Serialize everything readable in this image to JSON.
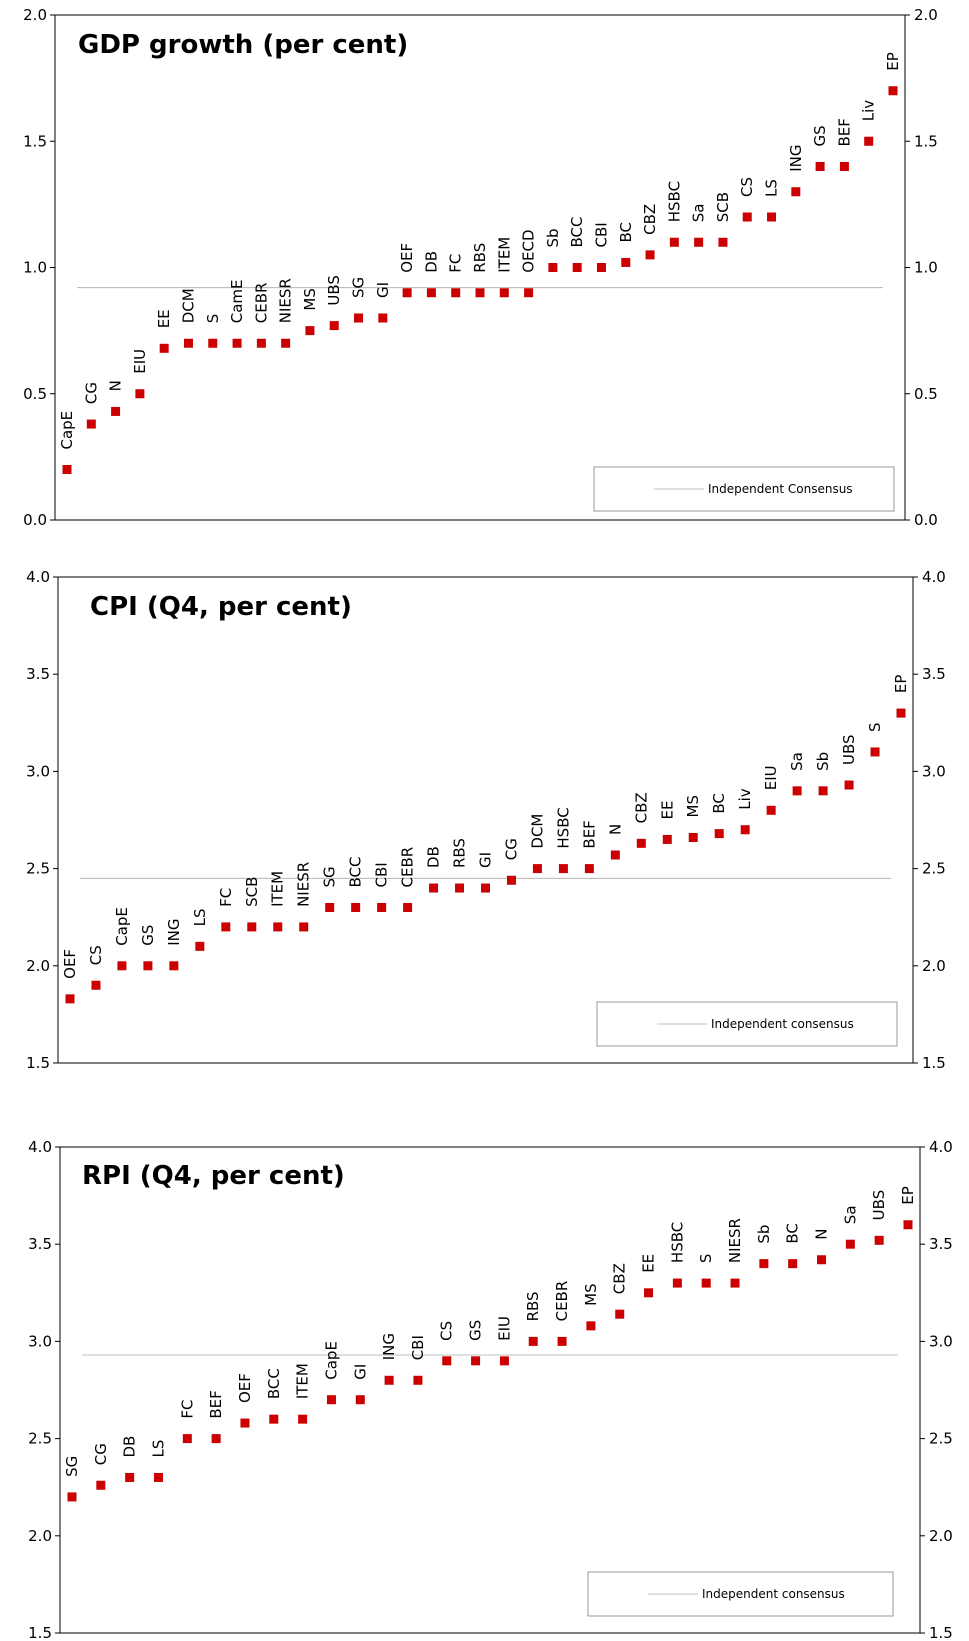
{
  "chart_data": [
    {
      "type": "scatter",
      "title": "GDP growth (per cent)",
      "ylim": [
        0.0,
        2.0
      ],
      "yticks": [
        "0.0",
        "0.5",
        "1.0",
        "1.5",
        "2.0"
      ],
      "consensus_value": 0.92,
      "legend": "Independent Consensus",
      "legend_position": "bottom-right",
      "marker_color": "#cc0000",
      "line_color": "#aaaaaa",
      "points": [
        {
          "label": "CapE",
          "value": 0.2
        },
        {
          "label": "CG",
          "value": 0.38
        },
        {
          "label": "N",
          "value": 0.43
        },
        {
          "label": "EIU",
          "value": 0.5
        },
        {
          "label": "EE",
          "value": 0.68
        },
        {
          "label": "DCM",
          "value": 0.7
        },
        {
          "label": "S",
          "value": 0.7
        },
        {
          "label": "CamE",
          "value": 0.7
        },
        {
          "label": "CEBR",
          "value": 0.7
        },
        {
          "label": "NIESR",
          "value": 0.7
        },
        {
          "label": "MS",
          "value": 0.75
        },
        {
          "label": "UBS",
          "value": 0.77
        },
        {
          "label": "SG",
          "value": 0.8
        },
        {
          "label": "GI",
          "value": 0.8
        },
        {
          "label": "OEF",
          "value": 0.9
        },
        {
          "label": "DB",
          "value": 0.9
        },
        {
          "label": "FC",
          "value": 0.9
        },
        {
          "label": "RBS",
          "value": 0.9
        },
        {
          "label": "ITEM",
          "value": 0.9
        },
        {
          "label": "OECD",
          "value": 0.9
        },
        {
          "label": "Sb",
          "value": 1.0
        },
        {
          "label": "BCC",
          "value": 1.0
        },
        {
          "label": "CBI",
          "value": 1.0
        },
        {
          "label": "BC",
          "value": 1.02
        },
        {
          "label": "CBZ",
          "value": 1.05
        },
        {
          "label": "HSBC",
          "value": 1.1
        },
        {
          "label": "Sa",
          "value": 1.1
        },
        {
          "label": "SCB",
          "value": 1.1
        },
        {
          "label": "CS",
          "value": 1.2
        },
        {
          "label": "LS",
          "value": 1.2
        },
        {
          "label": "ING",
          "value": 1.3
        },
        {
          "label": "GS",
          "value": 1.4
        },
        {
          "label": "BEF",
          "value": 1.4
        },
        {
          "label": "Liv",
          "value": 1.5
        },
        {
          "label": "EP",
          "value": 1.7
        }
      ]
    },
    {
      "type": "scatter",
      "title": "CPI (Q4, per cent)",
      "ylim": [
        1.5,
        4.0
      ],
      "yticks": [
        "1.5",
        "2.0",
        "2.5",
        "3.0",
        "3.5",
        "4.0"
      ],
      "consensus_value": 2.45,
      "legend": "Independent consensus",
      "legend_position": "bottom-right",
      "marker_color": "#cc0000",
      "line_color": "#aaaaaa",
      "points": [
        {
          "label": "OEF",
          "value": 1.83
        },
        {
          "label": "CS",
          "value": 1.9
        },
        {
          "label": "CapE",
          "value": 2.0
        },
        {
          "label": "GS",
          "value": 2.0
        },
        {
          "label": "ING",
          "value": 2.0
        },
        {
          "label": "LS",
          "value": 2.1
        },
        {
          "label": "FC",
          "value": 2.2
        },
        {
          "label": "SCB",
          "value": 2.2
        },
        {
          "label": "ITEM",
          "value": 2.2
        },
        {
          "label": "NIESR",
          "value": 2.2
        },
        {
          "label": "SG",
          "value": 2.3
        },
        {
          "label": "BCC",
          "value": 2.3
        },
        {
          "label": "CBI",
          "value": 2.3
        },
        {
          "label": "CEBR",
          "value": 2.3
        },
        {
          "label": "DB",
          "value": 2.4
        },
        {
          "label": "RBS",
          "value": 2.4
        },
        {
          "label": "GI",
          "value": 2.4
        },
        {
          "label": "CG",
          "value": 2.44
        },
        {
          "label": "DCM",
          "value": 2.5
        },
        {
          "label": "HSBC",
          "value": 2.5
        },
        {
          "label": "BEF",
          "value": 2.5
        },
        {
          "label": "N",
          "value": 2.57
        },
        {
          "label": "CBZ",
          "value": 2.63
        },
        {
          "label": "EE",
          "value": 2.65
        },
        {
          "label": "MS",
          "value": 2.66
        },
        {
          "label": "BC",
          "value": 2.68
        },
        {
          "label": "Liv",
          "value": 2.7
        },
        {
          "label": "EIU",
          "value": 2.8
        },
        {
          "label": "Sa",
          "value": 2.9
        },
        {
          "label": "Sb",
          "value": 2.9
        },
        {
          "label": "UBS",
          "value": 2.93
        },
        {
          "label": "S",
          "value": 3.1
        },
        {
          "label": "EP",
          "value": 3.3
        }
      ]
    },
    {
      "type": "scatter",
      "title": "RPI (Q4, per cent)",
      "ylim": [
        1.5,
        4.0
      ],
      "yticks": [
        "1.5",
        "2.0",
        "2.5",
        "3.0",
        "3.5",
        "4.0"
      ],
      "consensus_value": 2.93,
      "legend": "Independent consensus",
      "legend_position": "bottom-right",
      "marker_color": "#cc0000",
      "line_color": "#aaaaaa",
      "points": [
        {
          "label": "SG",
          "value": 2.2
        },
        {
          "label": "CG",
          "value": 2.26
        },
        {
          "label": "DB",
          "value": 2.3
        },
        {
          "label": "LS",
          "value": 2.3
        },
        {
          "label": "FC",
          "value": 2.5
        },
        {
          "label": "BEF",
          "value": 2.5
        },
        {
          "label": "OEF",
          "value": 2.58
        },
        {
          "label": "BCC",
          "value": 2.6
        },
        {
          "label": "ITEM",
          "value": 2.6
        },
        {
          "label": "CapE",
          "value": 2.7
        },
        {
          "label": "GI",
          "value": 2.7
        },
        {
          "label": "ING",
          "value": 2.8
        },
        {
          "label": "CBI",
          "value": 2.8
        },
        {
          "label": "CS",
          "value": 2.9
        },
        {
          "label": "GS",
          "value": 2.9
        },
        {
          "label": "EIU",
          "value": 2.9
        },
        {
          "label": "RBS",
          "value": 3.0
        },
        {
          "label": "CEBR",
          "value": 3.0
        },
        {
          "label": "MS",
          "value": 3.08
        },
        {
          "label": "CBZ",
          "value": 3.14
        },
        {
          "label": "EE",
          "value": 3.25
        },
        {
          "label": "HSBC",
          "value": 3.3
        },
        {
          "label": "S",
          "value": 3.3
        },
        {
          "label": "NIESR",
          "value": 3.3
        },
        {
          "label": "Sb",
          "value": 3.4
        },
        {
          "label": "BC",
          "value": 3.4
        },
        {
          "label": "N",
          "value": 3.42
        },
        {
          "label": "Sa",
          "value": 3.5
        },
        {
          "label": "UBS",
          "value": 3.52
        },
        {
          "label": "EP",
          "value": 3.6
        }
      ]
    }
  ]
}
